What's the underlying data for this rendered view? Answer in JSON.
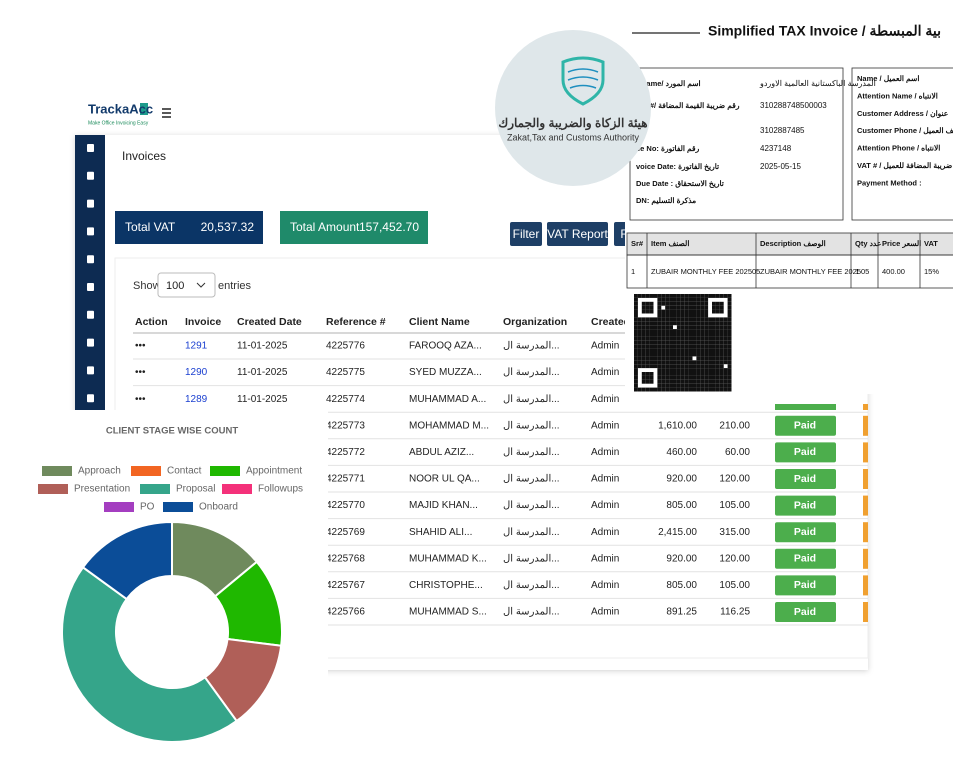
{
  "app": {
    "logo": "TrackaAcc",
    "tagline": "Make Office Invoicing Easy",
    "page_title": "Invoices",
    "total_vat": {
      "label": "Total VAT",
      "value": "20,537.32"
    },
    "total_amount": {
      "label": "Total Amount",
      "value": "157,452.70"
    },
    "buttons": [
      "Filter",
      "VAT Report",
      "F"
    ],
    "show": "Show",
    "page_size": "100",
    "entries": "entries",
    "columns": [
      "Action",
      "Invoice",
      "Created Date",
      "Reference #",
      "Client Name",
      "Organization",
      "Created"
    ],
    "rows": [
      {
        "action": "•••",
        "invoice": "1291",
        "created_date": "11-01-2025",
        "reference": "4225776",
        "client_name": "FAROOQ AZA...",
        "organization": "المدرسة ال...",
        "created_by": "Admin"
      },
      {
        "action": "•••",
        "invoice": "1290",
        "created_date": "11-01-2025",
        "reference": "4225775",
        "client_name": "SYED MUZZA...",
        "organization": "المدرسة ال...",
        "created_by": "Admin"
      },
      {
        "action": "•••",
        "invoice": "1289",
        "created_date": "11-01-2025",
        "reference": "4225774",
        "client_name": "MUHAMMAD A...",
        "organization": "المدرسة ال...",
        "created_by": "Admin"
      },
      {
        "reference": "4225773",
        "client_name": "MOHAMMAD M...",
        "organization": "المدرسة ال...",
        "created_by": "Admin",
        "amount": "1,610.00",
        "vat": "210.00",
        "status": "Paid"
      },
      {
        "reference": "4225772",
        "client_name": "ABDUL AZIZ...",
        "organization": "المدرسة ال...",
        "created_by": "Admin",
        "amount": "460.00",
        "vat": "60.00",
        "status": "Paid"
      },
      {
        "reference": "4225771",
        "client_name": "NOOR UL QA...",
        "organization": "المدرسة ال...",
        "created_by": "Admin",
        "amount": "920.00",
        "vat": "120.00",
        "status": "Paid"
      },
      {
        "reference": "4225770",
        "client_name": "MAJID KHAN...",
        "organization": "المدرسة ال...",
        "created_by": "Admin",
        "amount": "805.00",
        "vat": "105.00",
        "status": "Paid"
      },
      {
        "reference": "4225769",
        "client_name": "SHAHID ALI...",
        "organization": "المدرسة ال...",
        "created_by": "Admin",
        "amount": "2,415.00",
        "vat": "315.00",
        "status": "Paid"
      },
      {
        "reference": "4225768",
        "client_name": "MUHAMMAD K...",
        "organization": "المدرسة ال...",
        "created_by": "Admin",
        "amount": "920.00",
        "vat": "120.00",
        "status": "Paid"
      },
      {
        "reference": "4225767",
        "client_name": "CHRISTOPHE...",
        "organization": "المدرسة ال...",
        "created_by": "Admin",
        "amount": "805.00",
        "vat": "105.00",
        "status": "Paid"
      },
      {
        "reference": "4225766",
        "client_name": "MUHAMMAD S...",
        "organization": "المدرسة ال...",
        "created_by": "Admin",
        "amount": "891.25",
        "vat": "116.25",
        "status": "Paid"
      }
    ]
  },
  "invoice": {
    "title": "Simplified TAX Invoice / بية المبسطة",
    "supplier_fields": [
      {
        "label": "r Name/ اسم المورد",
        "value": "المدرسة الباكستانية العالمية الاوردو"
      },
      {
        "label": "VAT#/ رقم ضريبة القيمة المضافة",
        "value": "310288748500003"
      },
      {
        "value": "3102887485"
      },
      {
        "label": "ce No: رقم الفاتورة",
        "value": "4237148"
      },
      {
        "label": "voice Date: تاريخ الفاتورة",
        "value": "2025-05-15"
      },
      {
        "label": "Due Date : تاريخ الاستحقاق"
      },
      {
        "label": "DN: مذكرة التسليم"
      }
    ],
    "customer_fields": [
      "Name / اسم العميل",
      "Attention Name / الانتباه",
      "Customer Address / عنوان",
      "Customer Phone / هاتف العميل",
      "Attention Phone / الانتباه",
      "VAT # / ضريبة المضافة للعميل",
      "Payment Method :"
    ],
    "items": {
      "columns": [
        "Sr#",
        "Item الصنف",
        "Description الوصف",
        "Qty عدد",
        "Price السعر",
        "VAT"
      ],
      "rows": [
        [
          "1",
          "ZUBAIR MONTHLY FEE 202505",
          "ZUBAIR MONTHLY FEE 202505",
          "1",
          "400.00",
          "15%"
        ]
      ]
    }
  },
  "authority": {
    "arabic": "هيئة الزكاة والضريبة والجمارك",
    "english": "Zakat,Tax and Customs Authority"
  },
  "chart_data": {
    "type": "pie",
    "title": "CLIENT STAGE WISE COUNT",
    "donut": true,
    "categories": [
      "Approach",
      "Contact",
      "Appointment",
      "Presentation",
      "Proposal",
      "Followups",
      "PO",
      "Onboard"
    ],
    "values": [
      14,
      0,
      13,
      13,
      45,
      0,
      0,
      15
    ],
    "colors": [
      "#6f8a5d",
      "#f26522",
      "#1fb800",
      "#b05f58",
      "#35a58a",
      "#f4317a",
      "#a43ec0",
      "#0b4d98"
    ]
  }
}
